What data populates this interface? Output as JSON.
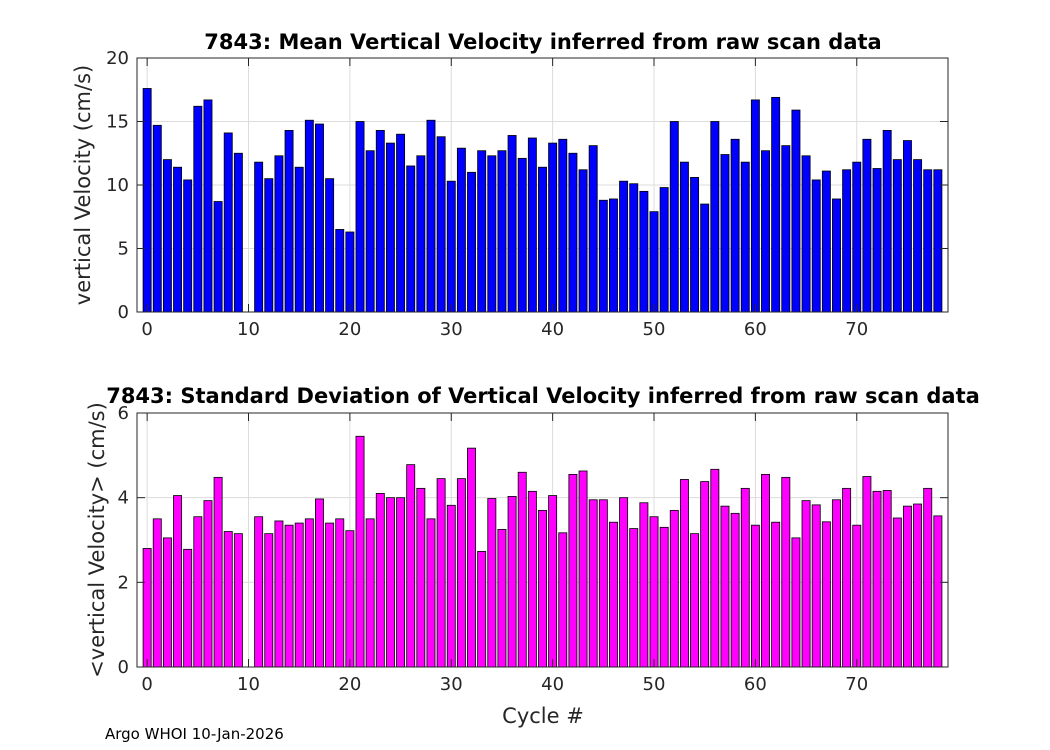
{
  "chart_data": [
    {
      "type": "bar",
      "title": "7843: Mean Vertical Velocity inferred from raw scan data",
      "xlabel": "",
      "ylabel": "vertical Velocity (cm/s)",
      "xlim": [
        -1,
        79
      ],
      "ylim": [
        0,
        20
      ],
      "xticks": [
        0,
        10,
        20,
        30,
        40,
        50,
        60,
        70
      ],
      "yticks": [
        0,
        5,
        10,
        15,
        20
      ],
      "grid": true,
      "bar_color": "#0000ff",
      "x": [
        0,
        1,
        2,
        3,
        4,
        5,
        6,
        7,
        8,
        9,
        11,
        12,
        13,
        14,
        15,
        16,
        17,
        18,
        19,
        20,
        21,
        22,
        23,
        24,
        25,
        26,
        27,
        28,
        29,
        30,
        31,
        32,
        33,
        34,
        35,
        36,
        37,
        38,
        39,
        40,
        41,
        42,
        43,
        44,
        45,
        46,
        47,
        48,
        49,
        50,
        51,
        52,
        53,
        54,
        55,
        56,
        57,
        58,
        59,
        60,
        61,
        62,
        63,
        64,
        65,
        66,
        67,
        68,
        69,
        70,
        71,
        72,
        73,
        74,
        75,
        76,
        77,
        78
      ],
      "values": [
        17.6,
        14.7,
        12.0,
        11.4,
        10.4,
        16.2,
        16.7,
        8.7,
        14.1,
        12.5,
        11.8,
        10.5,
        12.3,
        14.3,
        11.4,
        15.1,
        14.8,
        10.5,
        6.5,
        6.3,
        15.0,
        12.7,
        14.3,
        13.3,
        14.0,
        11.5,
        12.3,
        15.1,
        13.8,
        10.3,
        12.9,
        11.0,
        12.7,
        12.3,
        12.7,
        13.9,
        12.1,
        13.7,
        11.4,
        13.3,
        13.6,
        12.5,
        11.2,
        13.1,
        8.8,
        8.9,
        10.3,
        10.1,
        9.5,
        7.9,
        9.8,
        15.0,
        11.8,
        10.6,
        8.5,
        15.0,
        12.4,
        13.6,
        11.8,
        16.7,
        12.7,
        16.9,
        13.1,
        15.9,
        12.3,
        10.4,
        11.1,
        8.9,
        11.2,
        11.8,
        13.6,
        11.3,
        14.3,
        12.0,
        13.5,
        12.0,
        11.2,
        11.2
      ]
    },
    {
      "type": "bar",
      "title": "7843: Standard Deviation of Vertical Velocity inferred from raw scan data",
      "xlabel": "Cycle #",
      "ylabel": "<vertical Velocity> (cm/s)",
      "xlim": [
        -1,
        79
      ],
      "ylim": [
        0,
        6
      ],
      "xticks": [
        0,
        10,
        20,
        30,
        40,
        50,
        60,
        70
      ],
      "yticks": [
        0,
        2,
        4,
        6
      ],
      "grid": true,
      "bar_color": "#ff00ff",
      "x": [
        0,
        1,
        2,
        3,
        4,
        5,
        6,
        7,
        8,
        9,
        11,
        12,
        13,
        14,
        15,
        16,
        17,
        18,
        19,
        20,
        21,
        22,
        23,
        24,
        25,
        26,
        27,
        28,
        29,
        30,
        31,
        32,
        33,
        34,
        35,
        36,
        37,
        38,
        39,
        40,
        41,
        42,
        43,
        44,
        45,
        46,
        47,
        48,
        49,
        50,
        51,
        52,
        53,
        54,
        55,
        56,
        57,
        58,
        59,
        60,
        61,
        62,
        63,
        64,
        65,
        66,
        67,
        68,
        69,
        70,
        71,
        72,
        73,
        74,
        75,
        76,
        77,
        78
      ],
      "values": [
        2.8,
        3.5,
        3.05,
        4.05,
        2.78,
        3.55,
        3.93,
        4.48,
        3.2,
        3.15,
        3.55,
        3.15,
        3.45,
        3.35,
        3.4,
        3.5,
        3.97,
        3.4,
        3.5,
        3.22,
        5.45,
        3.5,
        4.1,
        4.0,
        4.0,
        4.78,
        4.22,
        3.5,
        4.45,
        3.82,
        4.45,
        5.17,
        2.73,
        3.98,
        3.25,
        4.03,
        4.6,
        4.15,
        3.7,
        4.05,
        3.17,
        4.55,
        4.63,
        3.95,
        3.95,
        3.42,
        4.0,
        3.27,
        3.88,
        3.55,
        3.3,
        3.7,
        4.43,
        3.15,
        4.38,
        4.67,
        3.8,
        3.63,
        4.22,
        3.35,
        4.55,
        3.42,
        4.48,
        3.05,
        3.93,
        3.83,
        3.43,
        3.95,
        4.22,
        3.35,
        4.5,
        4.15,
        4.17,
        3.52,
        3.8,
        3.85,
        4.22,
        3.57
      ]
    }
  ],
  "footer": "Argo WHOI 10-Jan-2026"
}
